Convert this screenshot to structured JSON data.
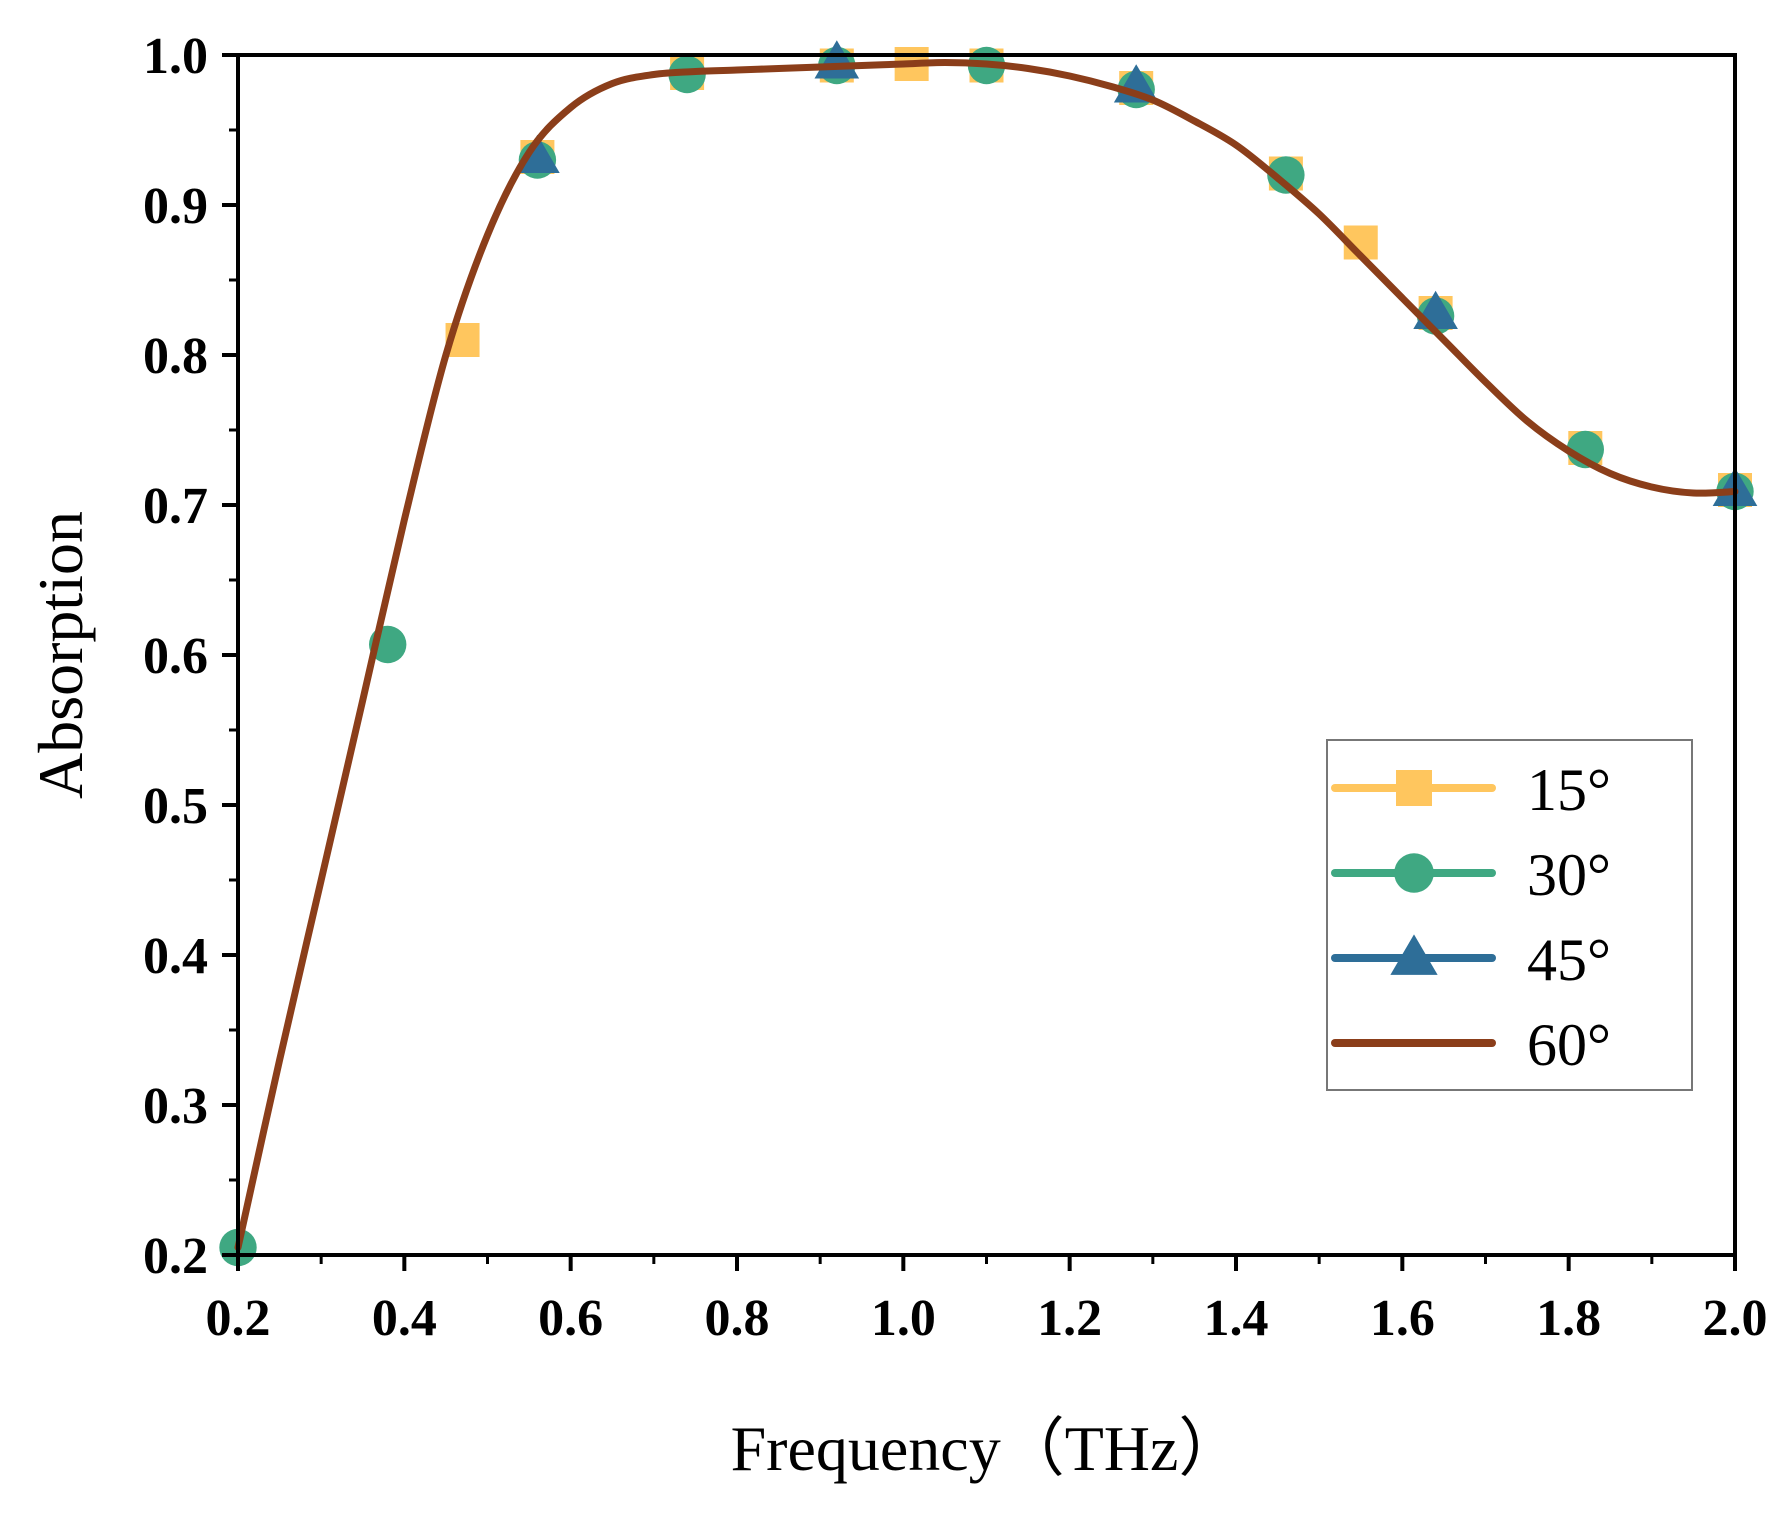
{
  "chart_data": {
    "type": "line",
    "title": "",
    "xlabel": "Frequency（THz）",
    "ylabel": "Absorption",
    "xlim": [
      0.2,
      2.0
    ],
    "ylim": [
      0.2,
      1.0
    ],
    "x_ticks": [
      0.2,
      0.4,
      0.6,
      0.8,
      1.0,
      1.2,
      1.4,
      1.6,
      1.8,
      2.0
    ],
    "x_tick_labels": [
      "0.2",
      "0.4",
      "0.6",
      "0.8",
      "1.0",
      "1.2",
      "1.4",
      "1.6",
      "1.8",
      "2.0"
    ],
    "y_ticks": [
      0.2,
      0.3,
      0.4,
      0.5,
      0.6,
      0.7,
      0.8,
      0.9,
      1.0
    ],
    "y_tick_labels": [
      "0.2",
      "0.3",
      "0.4",
      "0.5",
      "0.6",
      "0.7",
      "0.8",
      "0.9",
      "1.0"
    ],
    "grid": false,
    "legend_position": "center-right",
    "curve": {
      "x": [
        0.2,
        0.25,
        0.3,
        0.35,
        0.4,
        0.45,
        0.5,
        0.55,
        0.6,
        0.65,
        0.7,
        0.75,
        0.8,
        0.85,
        0.9,
        0.95,
        1.0,
        1.05,
        1.1,
        1.15,
        1.2,
        1.25,
        1.3,
        1.35,
        1.4,
        1.45,
        1.5,
        1.55,
        1.6,
        1.65,
        1.7,
        1.75,
        1.8,
        1.85,
        1.9,
        1.95,
        2.0
      ],
      "y": [
        0.205,
        0.33,
        0.45,
        0.57,
        0.69,
        0.8,
        0.88,
        0.935,
        0.965,
        0.981,
        0.987,
        0.989,
        0.99,
        0.991,
        0.992,
        0.993,
        0.994,
        0.995,
        0.994,
        0.991,
        0.986,
        0.979,
        0.97,
        0.956,
        0.94,
        0.918,
        0.894,
        0.866,
        0.838,
        0.81,
        0.782,
        0.756,
        0.736,
        0.721,
        0.712,
        0.708,
        0.709
      ]
    },
    "series": [
      {
        "name": "15°",
        "color": "#FFC65E",
        "marker": "square",
        "x": [
          0.47,
          0.56,
          0.74,
          0.92,
          1.01,
          1.1,
          1.28,
          1.46,
          1.55,
          1.64,
          1.82,
          2.0
        ],
        "y": [
          0.81,
          0.932,
          0.988,
          0.993,
          0.994,
          0.993,
          0.978,
          0.921,
          0.875,
          0.828,
          0.738,
          0.71
        ]
      },
      {
        "name": "30°",
        "color": "#3FA882",
        "marker": "circle",
        "x": [
          0.2,
          0.38,
          0.56,
          0.74,
          0.92,
          1.1,
          1.28,
          1.46,
          1.64,
          1.82,
          2.0
        ],
        "y": [
          0.205,
          0.607,
          0.93,
          0.987,
          0.993,
          0.993,
          0.977,
          0.92,
          0.826,
          0.737,
          0.709
        ]
      },
      {
        "name": "45°",
        "color": "#2E6E98",
        "marker": "triangle",
        "x": [
          0.56,
          0.92,
          1.28,
          1.64,
          2.0
        ],
        "y": [
          0.932,
          0.995,
          0.979,
          0.828,
          0.71
        ]
      },
      {
        "name": "60°",
        "color": "#8B3E1A",
        "marker": "none",
        "x": [
          0.2,
          0.25,
          0.3,
          0.35,
          0.4,
          0.45,
          0.5,
          0.55,
          0.6,
          0.65,
          0.7,
          0.75,
          0.8,
          0.85,
          0.9,
          0.95,
          1.0,
          1.05,
          1.1,
          1.15,
          1.2,
          1.25,
          1.3,
          1.35,
          1.4,
          1.45,
          1.5,
          1.55,
          1.6,
          1.65,
          1.7,
          1.75,
          1.8,
          1.85,
          1.9,
          1.95,
          2.0
        ],
        "y": [
          0.205,
          0.33,
          0.45,
          0.57,
          0.69,
          0.8,
          0.88,
          0.935,
          0.965,
          0.981,
          0.987,
          0.989,
          0.99,
          0.991,
          0.992,
          0.993,
          0.994,
          0.995,
          0.994,
          0.991,
          0.986,
          0.979,
          0.97,
          0.956,
          0.94,
          0.918,
          0.894,
          0.866,
          0.838,
          0.81,
          0.782,
          0.756,
          0.736,
          0.721,
          0.712,
          0.708,
          0.709
        ]
      }
    ]
  }
}
